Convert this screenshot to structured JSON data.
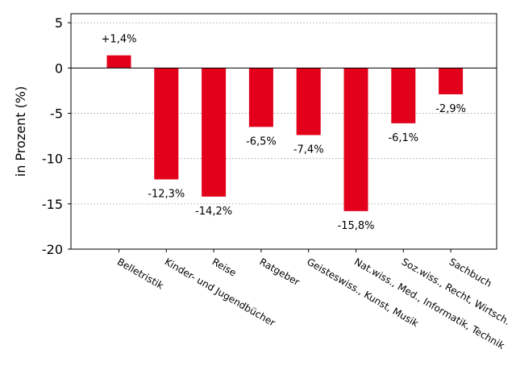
{
  "chart_data": {
    "type": "bar",
    "title": "",
    "xlabel": "",
    "ylabel": "in Prozent (%)",
    "ylim": [
      -20,
      6
    ],
    "yticks": [
      5,
      0,
      -5,
      -10,
      -15,
      -20
    ],
    "ytick_labels": [
      "5",
      "0",
      "-5",
      "-10",
      "-15",
      "-20"
    ],
    "grid": true,
    "bar_color": "#e3001b",
    "categories": [
      "Belletristik",
      "Kinder- und Jugendbücher",
      "Reise",
      "Ratgeber",
      "Geisteswiss., Kunst, Musik",
      "Nat.wiss., Med., Informatik, Technik",
      "Soz.wiss., Recht, Wirtsch.",
      "Sachbuch"
    ],
    "values": [
      1.4,
      -12.3,
      -14.2,
      -6.5,
      -7.4,
      -15.8,
      -6.1,
      -2.9
    ],
    "value_labels": [
      "+1,4%",
      "-12,3%",
      "-14,2%",
      "-6,5%",
      "-7,4%",
      "-15,8%",
      "-6,1%",
      "-2,9%"
    ]
  }
}
